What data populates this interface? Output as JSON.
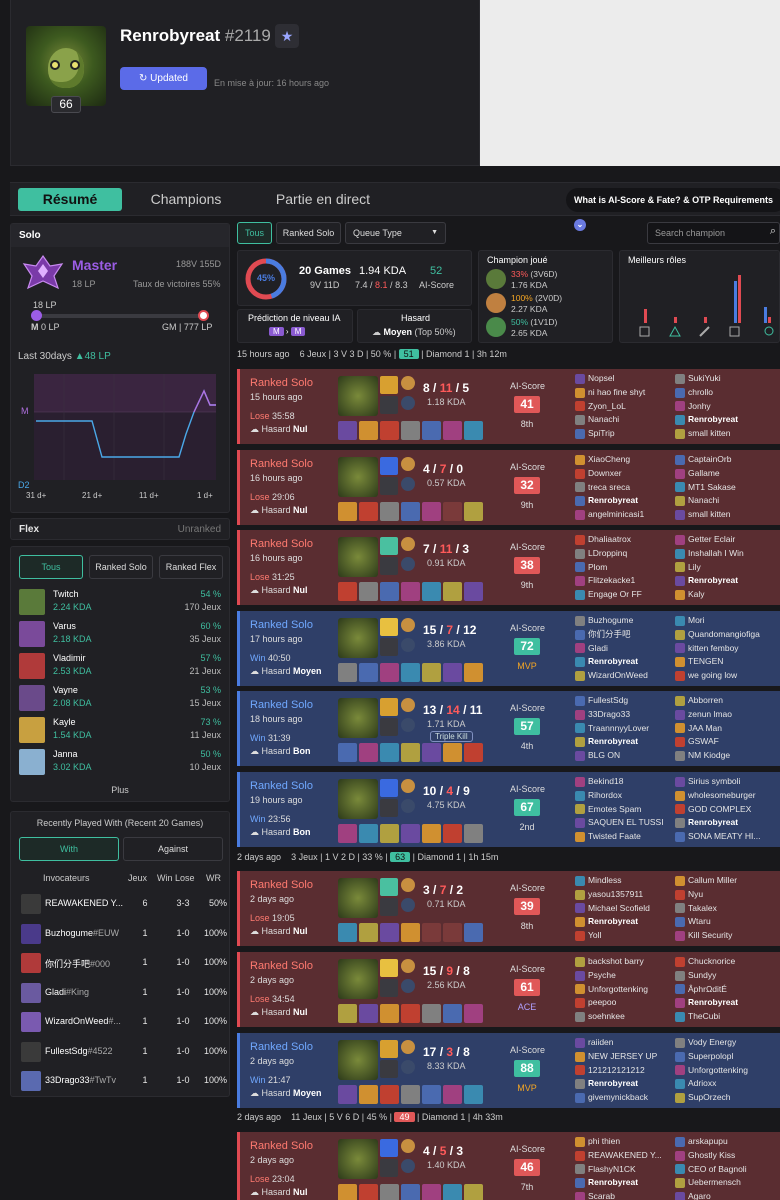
{
  "profile": {
    "name": "Renrobyreat",
    "tag": "#2119",
    "level": "66",
    "update_label": "Updated",
    "update_time": "En mise à jour: 16 hours ago"
  },
  "nav": {
    "tabs": [
      "Résumé",
      "Champions",
      "Partie en direct"
    ],
    "info": "What is AI-Score & Fate? & OTP Requirements"
  },
  "solo": {
    "title": "Solo",
    "tier": "Master",
    "lp": "18 LP",
    "record": "188V 155D",
    "winrate": "Taux de victoires 55%",
    "bar_lp": "18 LP",
    "bar_left_tier": "M",
    "bar_left_lp": "0 LP",
    "bar_right_tier": "GM",
    "bar_right_lp": "777 LP",
    "bar_progress": 0.023,
    "last30_label": "Last 30days",
    "last30_change": "▲48 LP",
    "graph_y_top": "M",
    "graph_y_bottom": "D2",
    "graph_x": [
      "31 d+",
      "21 d+",
      "11 d+",
      "1 d+"
    ]
  },
  "flex": {
    "title": "Flex",
    "status": "Unranked"
  },
  "champ_filters": [
    "Tous",
    "Ranked Solo",
    "Ranked Flex"
  ],
  "champions": [
    {
      "name": "Twitch",
      "kda": "2.24 KDA",
      "wr": "54 %",
      "games": "170 Jeux",
      "color": "#5a7a3a"
    },
    {
      "name": "Varus",
      "kda": "2.18 KDA",
      "wr": "60 %",
      "games": "35 Jeux",
      "color": "#7a4a9a"
    },
    {
      "name": "Vladimir",
      "kda": "2.53 KDA",
      "wr": "57 %",
      "games": "21 Jeux",
      "color": "#b03a3a"
    },
    {
      "name": "Vayne",
      "kda": "2.08 KDA",
      "wr": "53 %",
      "games": "15 Jeux",
      "color": "#6a4a8a"
    },
    {
      "name": "Kayle",
      "kda": "1.54 KDA",
      "wr": "73 %",
      "games": "11 Jeux",
      "color": "#c8a040"
    },
    {
      "name": "Janna",
      "kda": "3.02 KDA",
      "wr": "50 %",
      "games": "10 Jeux",
      "color": "#8ab0d0"
    }
  ],
  "champ_more": "Plus",
  "recent": {
    "title": "Recently Played With (Recent 20 Games)",
    "tabs": [
      "With",
      "Against"
    ],
    "headers": [
      "Invocateurs",
      "Jeux",
      "Win Lose",
      "WR"
    ],
    "rows": [
      {
        "name": "REAWAKENED Y...",
        "games": "6",
        "wl": "3-3",
        "wr": "50%",
        "color": "#3a3a3a"
      },
      {
        "name": "Buzhogume",
        "tag": "#EUW",
        "games": "1",
        "wl": "1-0",
        "wr": "100%",
        "color": "#4a3a8a"
      },
      {
        "name": "你们分手吧",
        "tag": "#000",
        "games": "1",
        "wl": "1-0",
        "wr": "100%",
        "color": "#b03a3a"
      },
      {
        "name": "Gladi",
        "tag": "#King",
        "games": "1",
        "wl": "1-0",
        "wr": "100%",
        "color": "#6a5aa0"
      },
      {
        "name": "WizardOnWeed",
        "tag": "#...",
        "games": "1",
        "wl": "1-0",
        "wr": "100%",
        "color": "#7a5ab0"
      },
      {
        "name": "FullestSdg",
        "tag": "#4522",
        "games": "1",
        "wl": "1-0",
        "wr": "100%",
        "color": "#3a3a3a"
      },
      {
        "name": "33Drago33",
        "tag": "#TwTv",
        "games": "1",
        "wl": "1-0",
        "wr": "100%",
        "color": "#5a6ab0"
      }
    ]
  },
  "filters": {
    "tous": "Tous",
    "ranked_solo": "Ranked Solo",
    "queue_type": "Queue Type",
    "search_placeholder": "Search champion"
  },
  "summary": {
    "winrate": "45%",
    "games": "20 Games",
    "record": "9V 11D",
    "kda": "1.94 KDA",
    "kda_k": "7.4",
    "kda_d": "8.1",
    "kda_a": "8.3",
    "ai_score": "52",
    "ai_label": "AI-Score",
    "prediction_label": "Prédiction de niveau IA",
    "pred_from": "M",
    "pred_to": "M",
    "hasard_label": "Hasard",
    "hasard_value": "Moyen",
    "hasard_extra": "(Top 50%)",
    "champ_played_label": "Champion joué",
    "champ_played": [
      {
        "wr": "33%",
        "rec": "(3V6D)",
        "kda": "1.76 KDA",
        "wr_color": "#ff5a5a",
        "color": "#5a7a3a"
      },
      {
        "wr": "100%",
        "rec": "(2V0D)",
        "kda": "2.27 KDA",
        "wr_color": "#f5a623",
        "color": "#c08040"
      },
      {
        "wr": "50%",
        "rec": "(1V1D)",
        "kda": "2.65 KDA",
        "wr_color": "#3fbfa0",
        "color": "#4a8a4a"
      }
    ],
    "roles_label": "Meilleurs rôles"
  },
  "days": [
    {
      "when": "15 hours ago",
      "games": "6 Jeux",
      "record": "3 V 3 D",
      "wr": "50 %",
      "score": "51",
      "tier": "Diamond 1",
      "dur": "3h 12m"
    },
    {
      "when": "2 days ago",
      "games": "3 Jeux",
      "record": "1 V 2 D",
      "wr": "33 %",
      "score": "63",
      "tier": "Diamond 1",
      "dur": "1h 15m"
    },
    {
      "when": "2 days ago",
      "games": "11 Jeux",
      "record": "5 V 6 D",
      "wr": "45 %",
      "score": "49",
      "tier": "Diamond 1",
      "dur": "4h 33m"
    }
  ],
  "matches": [
    {
      "result": "lose",
      "type": "Ranked Solo",
      "ago": "15 hours ago",
      "res": "Lose",
      "dur": "35:58",
      "hasard": "Hasard",
      "hlvl": "Nul",
      "k": "8",
      "d": "11",
      "a": "5",
      "kda": "1.18 KDA",
      "score": "41",
      "rank": "8th",
      "team1": [
        "Nopsel",
        "ni hao fine shyt",
        "Zyon_LoL",
        "Nanachi",
        "SpiTrip"
      ],
      "team2": [
        "SukiYuki",
        "chrollo",
        "Jonhy",
        "Renrobyreat",
        "small kitten"
      ]
    },
    {
      "result": "lose",
      "type": "Ranked Solo",
      "ago": "16 hours ago",
      "res": "Lose",
      "dur": "29:06",
      "hasard": "Hasard",
      "hlvl": "Nul",
      "k": "4",
      "d": "7",
      "a": "0",
      "kda": "0.57 KDA",
      "score": "32",
      "rank": "9th",
      "team1": [
        "XiaoCheng",
        "Downxer",
        "treca sreca",
        "Renrobyreat",
        "angelminicasi1"
      ],
      "team2": [
        "CaptainOrb",
        "Gallame",
        "MT1 Sakase",
        "Nanachi",
        "small kitten"
      ]
    },
    {
      "result": "lose",
      "type": "Ranked Solo",
      "ago": "16 hours ago",
      "res": "Lose",
      "dur": "31:25",
      "hasard": "Hasard",
      "hlvl": "Nul",
      "k": "7",
      "d": "11",
      "a": "3",
      "kda": "0.91 KDA",
      "score": "38",
      "rank": "9th",
      "team1": [
        "Dhaliaatrox",
        "LDroppinq",
        "Plom",
        "Flitzekacke1",
        "Engage Or FF"
      ],
      "team2": [
        "Getter Eclair",
        "Inshallah I Win",
        "Lily",
        "Renrobyreat",
        "Kaly"
      ]
    },
    {
      "result": "win",
      "type": "Ranked Solo",
      "ago": "17 hours ago",
      "res": "Win",
      "dur": "40:50",
      "hasard": "Hasard",
      "hlvl": "Moyen",
      "k": "15",
      "d": "7",
      "a": "12",
      "kda": "3.86 KDA",
      "score": "72",
      "rank": "MVP",
      "team1": [
        "Buzhogume",
        "你们分手吧",
        "Gladi",
        "Renrobyreat",
        "WizardOnWeed"
      ],
      "team2": [
        "Mori",
        "Quandomangiofiga",
        "kitten femboy",
        "TENGEN",
        "we going low"
      ]
    },
    {
      "result": "win",
      "type": "Ranked Solo",
      "ago": "18 hours ago",
      "res": "Win",
      "dur": "31:39",
      "hasard": "Hasard",
      "hlvl": "Bon",
      "k": "13",
      "d": "14",
      "a": "11",
      "kda": "1.71 KDA",
      "badge": "Triple Kill",
      "score": "57",
      "rank": "4th",
      "team1": [
        "FullestSdg",
        "33Drago33",
        "TraannnyyLover",
        "Renrobyreat",
        "BLG ON"
      ],
      "team2": [
        "Abborren",
        "zenun lmao",
        "JAA Man",
        "GSWAF",
        "NM Kiodge"
      ]
    },
    {
      "result": "win",
      "type": "Ranked Solo",
      "ago": "19 hours ago",
      "res": "Win",
      "dur": "23:56",
      "hasard": "Hasard",
      "hlvl": "Bon",
      "k": "10",
      "d": "4",
      "a": "9",
      "kda": "4.75 KDA",
      "score": "67",
      "rank": "2nd",
      "team1": [
        "Bekind18",
        "Rihordox",
        "Emotes Spam",
        "SAQUEN EL TUSSI",
        "Twisted Faate"
      ],
      "team2": [
        "Sirius symboli",
        "wholesomeburger",
        "GOD COMPLEX",
        "Renrobyreat",
        "SONA MEATY HI..."
      ]
    },
    {
      "result": "lose",
      "type": "Ranked Solo",
      "ago": "2 days ago",
      "res": "Lose",
      "dur": "19:05",
      "hasard": "Hasard",
      "hlvl": "Nul",
      "k": "3",
      "d": "7",
      "a": "2",
      "kda": "0.71 KDA",
      "score": "39",
      "rank": "8th",
      "team1": [
        "Mindless",
        "yasou1357911",
        "Michael Scofield",
        "Renrobyreat",
        "Yoll"
      ],
      "team2": [
        "Callum Miller",
        "Nyu",
        "Takalex",
        "Wtaru",
        "Kill Security"
      ]
    },
    {
      "result": "lose",
      "type": "Ranked Solo",
      "ago": "2 days ago",
      "res": "Lose",
      "dur": "34:54",
      "hasard": "Hasard",
      "hlvl": "Nul",
      "k": "15",
      "d": "9",
      "a": "8",
      "kda": "2.56 KDA",
      "score": "61",
      "rank": "ACE",
      "team1": [
        "backshot barry",
        "Psyche",
        "Unforgottenking",
        "peepoo",
        "soehnkee"
      ],
      "team2": [
        "Chucknorice",
        "Sundyy",
        "ÂphrΩditÉ",
        "Renrobyreat",
        "TheCubi"
      ]
    },
    {
      "result": "win",
      "type": "Ranked Solo",
      "ago": "2 days ago",
      "res": "Win",
      "dur": "21:47",
      "hasard": "Hasard",
      "hlvl": "Moyen",
      "k": "17",
      "d": "3",
      "a": "8",
      "kda": "8.33 KDA",
      "score": "88",
      "rank": "MVP",
      "team1": [
        "raiiden",
        "NEW JERSEY UP",
        "121212121212",
        "Renrobyreat",
        "givemynickback"
      ],
      "team2": [
        "Vody Energy",
        "Superpolopl",
        "Unforgottenking",
        "Adrioxx",
        "SupOrzech"
      ]
    },
    {
      "result": "lose",
      "type": "Ranked Solo",
      "ago": "2 days ago",
      "res": "Lose",
      "dur": "23:04",
      "hasard": "Hasard",
      "hlvl": "Nul",
      "k": "4",
      "d": "5",
      "a": "3",
      "kda": "1.40 KDA",
      "score": "46",
      "rank": "7th",
      "team1": [
        "phi thien",
        "REAWAKENED Y...",
        "FlashyN1CK",
        "Renrobyreat",
        "Scarab"
      ],
      "team2": [
        "arskapupu",
        "Ghostly Kiss",
        "CEO of Bagnoli",
        "Uebermensch",
        "Agaro"
      ]
    }
  ]
}
